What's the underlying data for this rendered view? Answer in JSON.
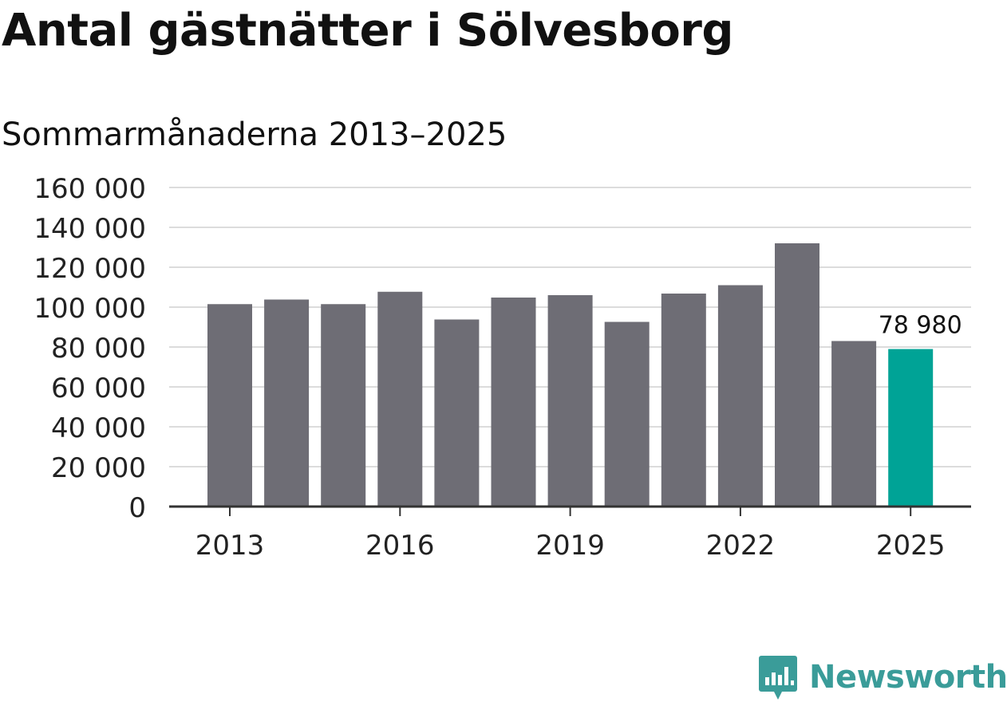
{
  "header": {
    "title": "Antal gästnätter i Sölvesborg",
    "subtitle": "Sommarmånaderna 2013–2025"
  },
  "branding": {
    "logo_text": "Newsworthy",
    "logo_icon": "bar-chart-speech-bubble-icon",
    "color": "#3a9c99"
  },
  "chart_data": {
    "type": "bar",
    "categories": [
      "2013",
      "2014",
      "2015",
      "2016",
      "2017",
      "2018",
      "2019",
      "2020",
      "2021",
      "2022",
      "2023",
      "2024",
      "2025"
    ],
    "values": [
      101500,
      103800,
      101500,
      107700,
      93800,
      104800,
      106000,
      92600,
      106800,
      111000,
      132000,
      83000,
      78980
    ],
    "x_tick_labels": [
      "2013",
      "2016",
      "2019",
      "2022",
      "2025"
    ],
    "y_ticks": [
      0,
      20000,
      40000,
      60000,
      80000,
      100000,
      120000,
      140000,
      160000
    ],
    "y_tick_labels": [
      "0",
      "20 000",
      "40 000",
      "60 000",
      "80 000",
      "100 000",
      "120 000",
      "140 000",
      "160 000"
    ],
    "ylim": [
      0,
      160000
    ],
    "highlight_index": 12,
    "highlight_label": "78 980",
    "bar_color": "#6e6d75",
    "highlight_color": "#00a396",
    "grid": true,
    "xlabel": "",
    "ylabel": ""
  }
}
